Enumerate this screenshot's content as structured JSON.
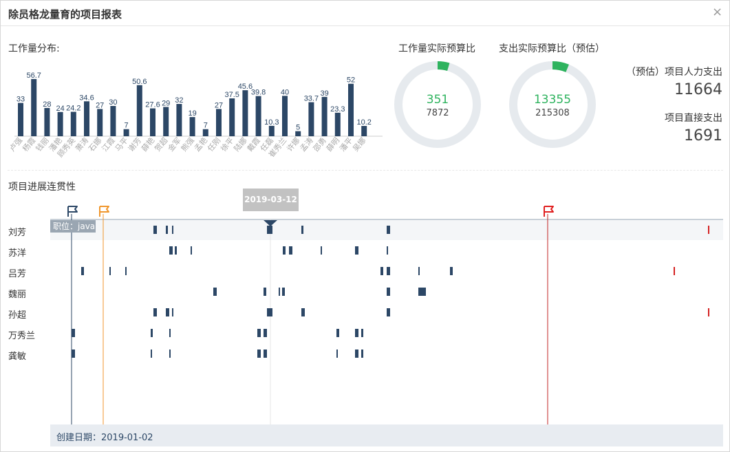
{
  "dialog": {
    "title": "除员格龙量育的项目报表",
    "close_symbol": "×"
  },
  "workload": {
    "section_title": "工作量分布:"
  },
  "chart_data": {
    "type": "bar",
    "categories": [
      "卢强",
      "杨霞",
      "钱丽",
      "潘艳",
      "顾秀英",
      "萧涛",
      "石娜",
      "江霞",
      "马平",
      "谢芳",
      "薛艳",
      "贺超",
      "金军",
      "熊强",
      "孟艳",
      "任刚",
      "徐平",
      "陆娜",
      "戴霞",
      "任磊",
      "崔秀兰",
      "许娜",
      "孟涛",
      "邵勇",
      "薛明",
      "潘平",
      "吴娜"
    ],
    "values": [
      33,
      56.7,
      28,
      24,
      24.2,
      34.6,
      27,
      30,
      7,
      50.6,
      27.6,
      29,
      32,
      19,
      7,
      27,
      37.5,
      45.6,
      39.8,
      10.3,
      40,
      5,
      33.7,
      39,
      23.3,
      52,
      10.2
    ],
    "ylim": [
      0,
      60
    ],
    "bar_color": "#2c4766",
    "label_color": "#2c4766",
    "tick_color": "#aaaaaa"
  },
  "donuts": [
    {
      "title": "工作量实际预算比",
      "value": "351",
      "total": "7872",
      "fraction": 0.0446
    },
    {
      "title": "支出实际预算比（预估）",
      "value": "13355",
      "total": "215308",
      "fraction": 0.062
    }
  ],
  "donut_colors": {
    "track": "#e6eaee",
    "fill": "#2eb35e"
  },
  "stats": {
    "labor_label": "（预估）项目人力支出",
    "labor_value": "11664",
    "direct_label": "项目直接支出",
    "direct_value": "1691"
  },
  "timeline": {
    "section_title": "项目进展连贯性",
    "tooltip_date": "2019-03-12",
    "job_tag": "职位：java",
    "footer": "创建日期：2019-01-02",
    "rows": [
      "刘芳",
      "苏洋",
      "吕芳",
      "魏丽",
      "孙超",
      "万秀兰",
      "龚敏"
    ],
    "flags": [
      {
        "name": "start-flag",
        "color": "#2c4766"
      },
      {
        "name": "milestone-flag",
        "color": "#f0962c"
      },
      {
        "name": "deadline-flag",
        "color": "#e02020"
      }
    ]
  }
}
